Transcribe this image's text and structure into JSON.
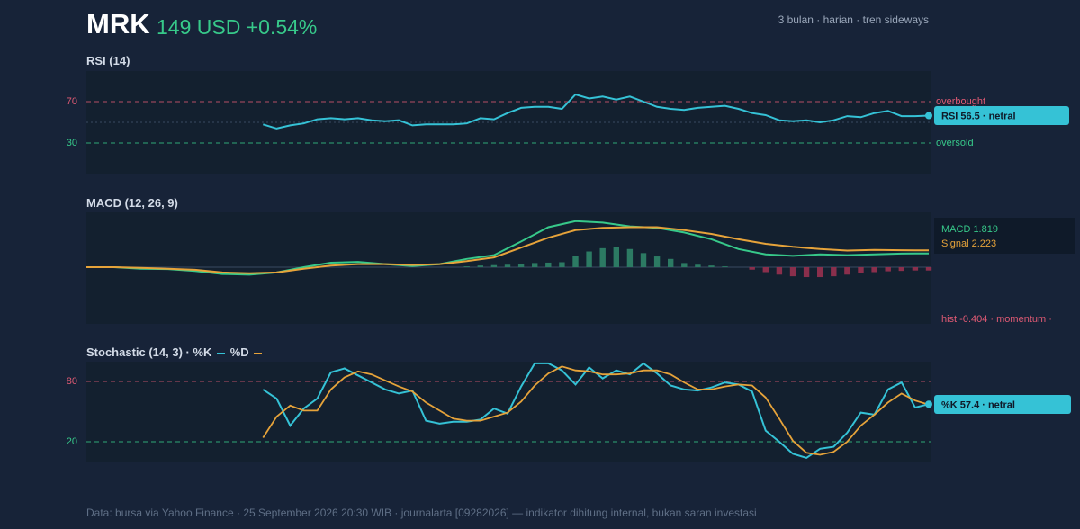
{
  "header": {
    "ticker": "MRK",
    "price_text": "149 USD +0.54%",
    "meta": "3 bulan · harian · tren sideways"
  },
  "rsi": {
    "title": "RSI (14)",
    "upper": 70,
    "lower": 30,
    "upper_label": "overbought",
    "lower_label": "oversold",
    "badge": "RSI 56.5 · netral"
  },
  "macd": {
    "title": "MACD (12, 26, 9)",
    "macd_label": "MACD 1.819",
    "signal_label": "Signal 2.223",
    "hist_label": "hist -0.404 · momentum ·"
  },
  "stoch": {
    "title": "Stochastic (14, 3) · %K",
    "d_label": "%D",
    "upper": 80,
    "lower": 20,
    "badge": "%K 57.4 · netral"
  },
  "footer": "Data: bursa via Yahoo Finance · 25 September 2026 20:30 WIB · journalarta [09282026] — indikator dihitung internal, bukan saran investasi",
  "colors": {
    "bg": "#172338",
    "panel": "#13202f",
    "rsi": "#35c2d6",
    "macd": "#37c98a",
    "signal": "#e6a33a",
    "stoch_k": "#35c2d6",
    "stoch_d": "#e6a33a",
    "overbought": "#e05a74",
    "oversold": "#37c98a"
  },
  "chart_data": [
    {
      "type": "line",
      "name": "RSI (14)",
      "x": [
        13,
        14,
        15,
        16,
        17,
        18,
        19,
        20,
        21,
        22,
        23,
        24,
        25,
        26,
        27,
        28,
        29,
        30,
        31,
        32,
        33,
        34,
        35,
        36,
        37,
        38,
        39,
        40,
        41,
        42,
        43,
        44,
        45,
        46,
        47,
        48,
        49,
        50,
        51,
        52,
        53,
        54,
        55,
        56,
        57,
        58,
        59,
        60,
        61,
        62
      ],
      "y": [
        48,
        44,
        47,
        49,
        53,
        54,
        53,
        54,
        52,
        51,
        52,
        47,
        48,
        48,
        48,
        49,
        54,
        53,
        59,
        64,
        65,
        65,
        63,
        77,
        73,
        75,
        72,
        75,
        70,
        65,
        63,
        62,
        64,
        65,
        66,
        63,
        59,
        57,
        52,
        51,
        52,
        50,
        52,
        56,
        55,
        59,
        61,
        56,
        56,
        56.5
      ],
      "ylim": [
        0,
        100
      ],
      "reference_lines": [
        70,
        30
      ]
    },
    {
      "type": "line",
      "name": "MACD (12, 26, 9)",
      "x": [
        0,
        2,
        4,
        6,
        8,
        10,
        12,
        14,
        16,
        18,
        20,
        22,
        24,
        26,
        28,
        30,
        32,
        34,
        36,
        38,
        40,
        42,
        44,
        46,
        48,
        50,
        52,
        54,
        56,
        58,
        60,
        62
      ],
      "series": [
        {
          "name": "MACD",
          "values": [
            0,
            0,
            -0.2,
            -0.25,
            -0.5,
            -0.9,
            -1.0,
            -0.7,
            0.0,
            0.6,
            0.7,
            0.4,
            0.15,
            0.4,
            1.1,
            1.6,
            3.4,
            5.3,
            6.1,
            5.9,
            5.4,
            5.2,
            4.6,
            3.7,
            2.4,
            1.7,
            1.5,
            1.7,
            1.6,
            1.7,
            1.8,
            1.819
          ]
        },
        {
          "name": "Signal",
          "values": [
            0,
            0,
            -0.1,
            -0.2,
            -0.35,
            -0.7,
            -0.8,
            -0.7,
            -0.2,
            0.2,
            0.4,
            0.4,
            0.3,
            0.4,
            0.8,
            1.3,
            2.6,
            3.9,
            4.9,
            5.2,
            5.3,
            5.3,
            4.9,
            4.4,
            3.7,
            3.1,
            2.7,
            2.4,
            2.2,
            2.3,
            2.25,
            2.223
          ]
        }
      ],
      "histogram": [
        0,
        0,
        0,
        0,
        0,
        0,
        0,
        0,
        0,
        0,
        0,
        0,
        0,
        0,
        0,
        0.1,
        0.2,
        0.25,
        0.3,
        0.4,
        0.5,
        0.55,
        0.6,
        1.4,
        1.9,
        2.3,
        2.5,
        2.2,
        1.7,
        1.3,
        1.0,
        0.5,
        0.3,
        0.2,
        0.1,
        0,
        -0.3,
        -0.6,
        -0.9,
        -1.1,
        -1.2,
        -1.2,
        -1.1,
        -0.9,
        -0.7,
        -0.6,
        -0.5,
        -0.45,
        -0.4,
        -0.404
      ],
      "hist_start_x": 13,
      "ylim": [
        -5,
        10
      ]
    },
    {
      "type": "line",
      "name": "Stochastic (14, 3)",
      "x": [
        13,
        14,
        15,
        16,
        17,
        18,
        19,
        20,
        21,
        22,
        23,
        24,
        25,
        26,
        27,
        28,
        29,
        30,
        31,
        32,
        33,
        34,
        35,
        36,
        37,
        38,
        39,
        40,
        41,
        42,
        43,
        44,
        45,
        46,
        47,
        48,
        49,
        50,
        51,
        52,
        53,
        54,
        55,
        56,
        57,
        58,
        59,
        60,
        61,
        62
      ],
      "series": [
        {
          "name": "%K",
          "values": [
            72,
            63,
            36,
            53,
            63,
            89,
            93,
            86,
            79,
            72,
            68,
            71,
            41,
            38,
            40,
            40,
            42,
            53,
            48,
            75,
            98,
            98,
            91,
            77,
            94,
            83,
            91,
            87,
            98,
            88,
            76,
            72,
            71,
            74,
            79,
            77,
            70,
            31,
            20,
            8,
            4,
            13,
            15,
            29,
            49,
            47,
            72,
            79,
            54,
            57.4
          ]
        },
        {
          "name": "%D",
          "values": [
            24,
            45,
            56,
            51,
            51,
            72,
            84,
            90,
            87,
            81,
            75,
            70,
            59,
            51,
            43,
            41,
            41,
            45,
            49,
            60,
            76,
            88,
            95,
            91,
            90,
            87,
            87,
            88,
            91,
            91,
            87,
            79,
            72,
            72,
            75,
            77,
            76,
            64,
            43,
            21,
            9,
            7,
            10,
            20,
            36,
            47,
            59,
            68,
            61,
            57
          ]
        }
      ],
      "ylim": [
        0,
        100
      ],
      "reference_lines": [
        80,
        20
      ]
    }
  ]
}
